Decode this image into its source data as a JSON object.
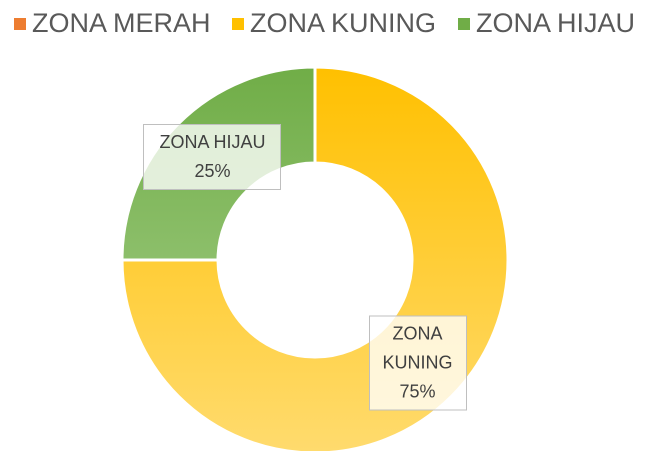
{
  "chart_data": {
    "type": "donut",
    "categories": [
      "ZONA MERAH",
      "ZONA KUNING",
      "ZONA HIJAU"
    ],
    "values": [
      0,
      75,
      25
    ],
    "value_labels": [
      null,
      "75%",
      "25%"
    ],
    "colors": [
      [
        "#ED7D31",
        "#F4B183"
      ],
      [
        "#FFC000",
        "#FFDB6E"
      ],
      [
        "#70AD47",
        "#A9D18E"
      ]
    ],
    "legend": "top"
  }
}
